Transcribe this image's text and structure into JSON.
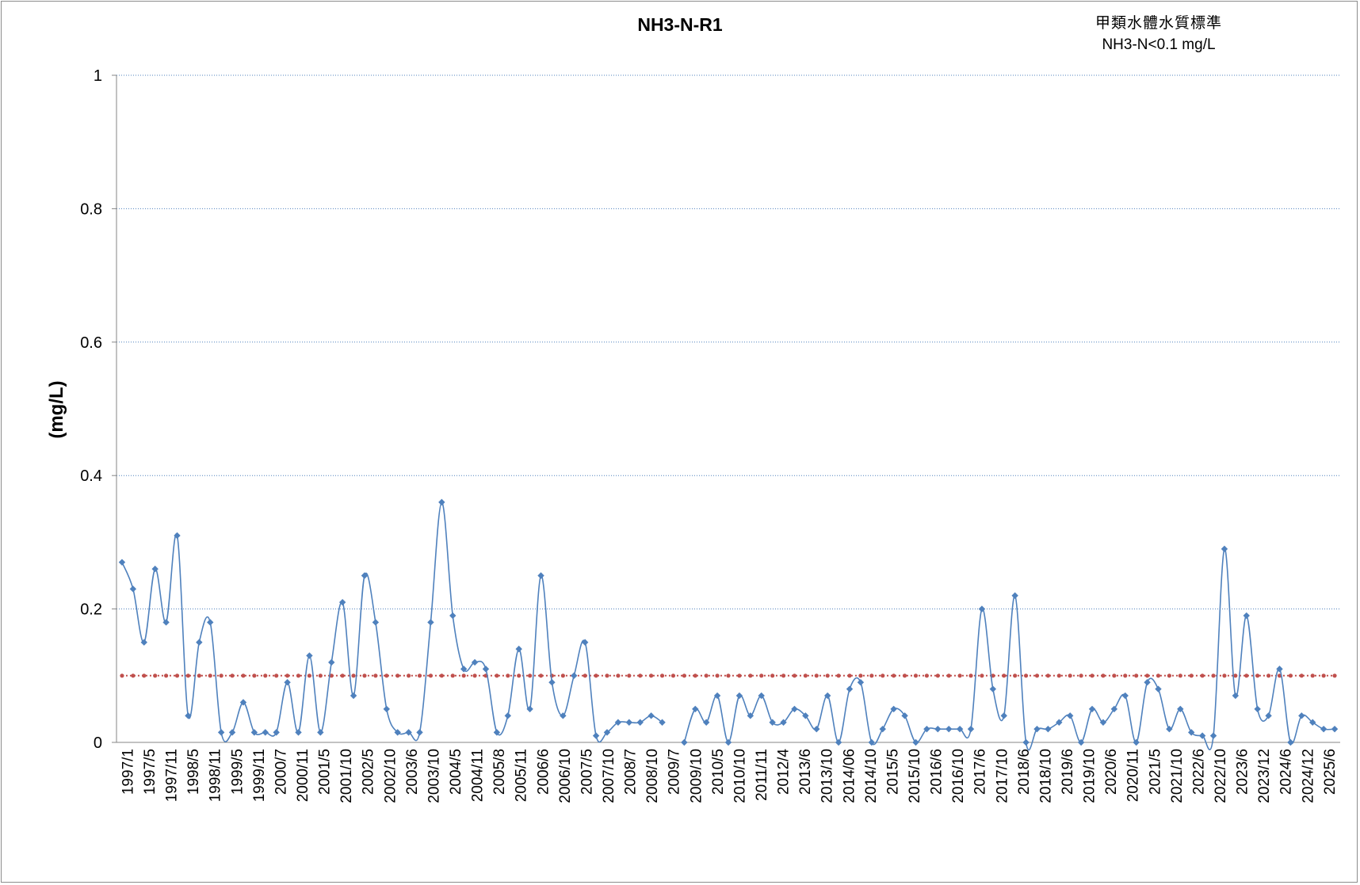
{
  "chart_data": {
    "type": "line",
    "title": "NH3-N-R1",
    "annotation_lines": [
      "甲類水體水質標準",
      "NH3-N<0.1 mg/L"
    ],
    "ylabel": "(mg/L)",
    "xlabel": "",
    "ylim": [
      0,
      1
    ],
    "yticks": [
      "0",
      "0.2",
      "0.4",
      "0.6",
      "0.8",
      "1"
    ],
    "grid": true,
    "x_tick_labels": [
      "1997/1",
      "1997/5",
      "1997/11",
      "1998/5",
      "1998/11",
      "1999/5",
      "1999/11",
      "2000/7",
      "2000/11",
      "2001/5",
      "2001/10",
      "2002/5",
      "2002/10",
      "2003/6",
      "2003/10",
      "2004/5",
      "2004/11",
      "2005/8",
      "2005/11",
      "2006/6",
      "2006/10",
      "2007/5",
      "2007/10",
      "2008/7",
      "2008/10",
      "2009/7",
      "2009/10",
      "2010/5",
      "2010/10",
      "2011/11",
      "2012/4",
      "2013/6",
      "2013/10",
      "2014/06",
      "2014/10",
      "2015/5",
      "2015/10",
      "2016/6",
      "2016/10",
      "2017/6",
      "2017/10",
      "2018/6",
      "2018/10",
      "2019/6",
      "2019/10",
      "2020/6",
      "2020/11",
      "2021/5",
      "2021/10",
      "2022/6",
      "2022/10",
      "2023/6",
      "2023/12",
      "2024/6",
      "2024/12",
      "2025/6"
    ],
    "series": [
      {
        "name": "",
        "color": "#4f81bd",
        "marker": "diamond",
        "smooth": true,
        "values": [
          0.27,
          0.23,
          0.15,
          0.26,
          0.18,
          0.31,
          0.04,
          0.15,
          0.18,
          0.015,
          0.015,
          0.06,
          0.015,
          0.015,
          0.015,
          0.09,
          0.015,
          0.13,
          0.015,
          0.12,
          0.21,
          0.07,
          0.25,
          0.18,
          0.05,
          0.015,
          0.015,
          0.015,
          0.18,
          0.36,
          0.19,
          0.11,
          0.12,
          0.11,
          0.015,
          0.04,
          0.14,
          0.05,
          0.25,
          0.09,
          0.04,
          0.1,
          0.15,
          0.01,
          0.015,
          0.03,
          0.03,
          0.03,
          0.04,
          0.03,
          null,
          0,
          0.05,
          0.03,
          0.07,
          0,
          0.07,
          0.04,
          0.07,
          0.03,
          0.03,
          0.05,
          0.04,
          0.02,
          0.07,
          0,
          0.08,
          0.09,
          0,
          0.02,
          0.05,
          0.04,
          0,
          0.02,
          0.02,
          0.02,
          0.02,
          0.02,
          0.2,
          0.08,
          0.04,
          0.22,
          0,
          0.02,
          0.02,
          0.03,
          0.04,
          0,
          0.05,
          0.03,
          0.05,
          0.07,
          0,
          0.09,
          0.08,
          0.02,
          0.05,
          0.015,
          0.01,
          0.01,
          0.29,
          0.07,
          0.19,
          0.05,
          0.04,
          0.11,
          0,
          0.04,
          0.03,
          0.02,
          0.02
        ]
      },
      {
        "name": "",
        "color": "#c0504d",
        "marker": "circle",
        "style": "dotted",
        "constant": 0.1
      }
    ]
  }
}
